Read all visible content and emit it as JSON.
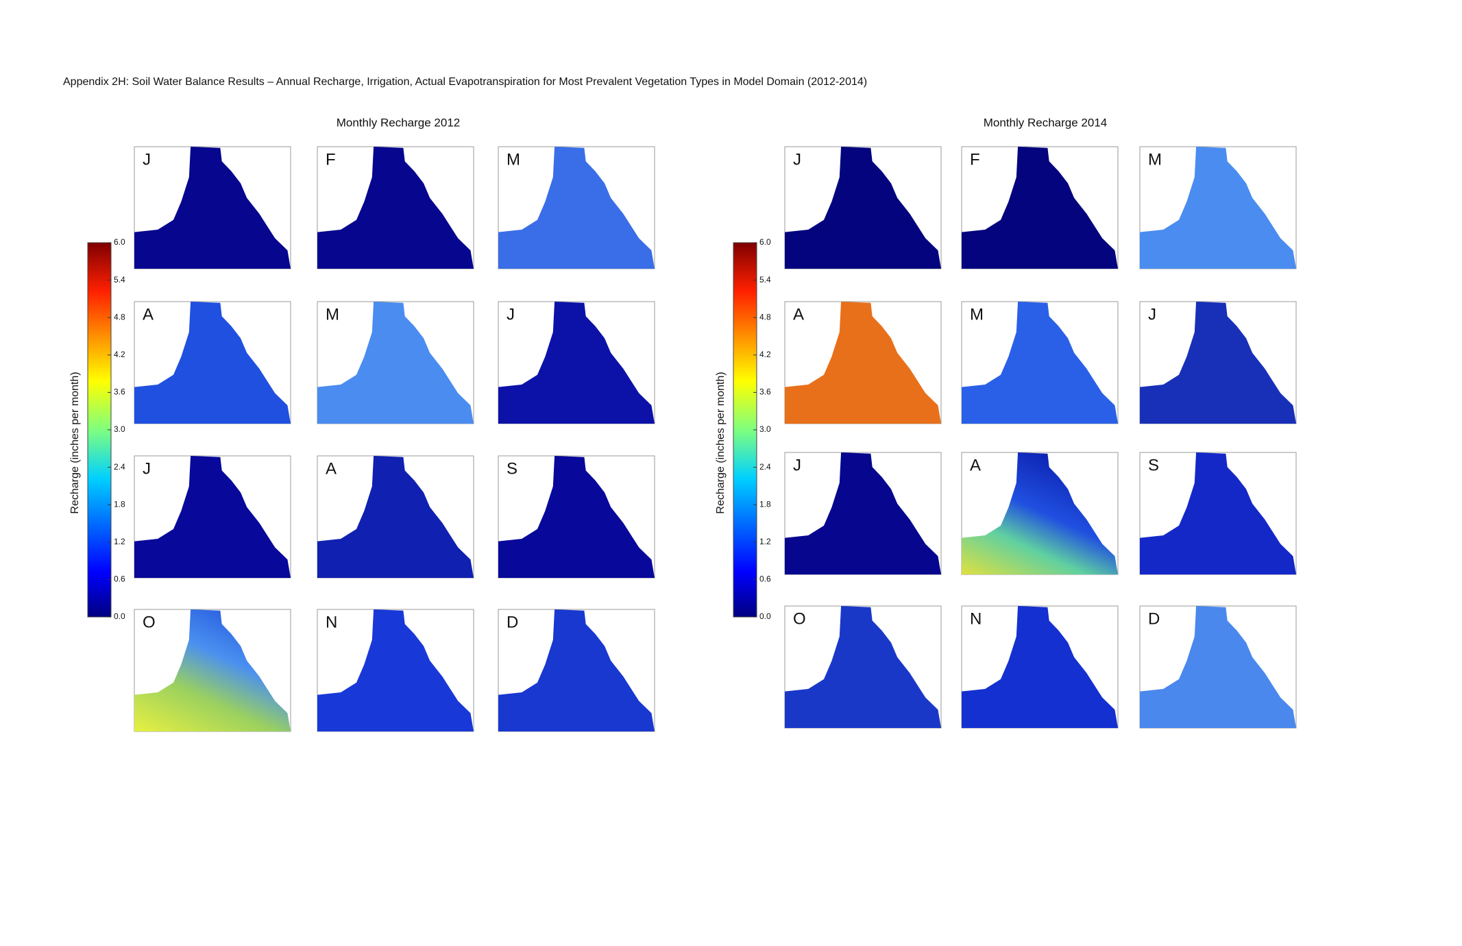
{
  "title": "Appendix 2H: Soil Water Balance Results – Annual Recharge, Irrigation, Actual Evapotranspiration for Most Prevalent Vegetation Types in Model Domain (2012-2014)",
  "groups": [
    {
      "heading": "Monthly  Recharge 2012",
      "colorbar": {
        "label": "Recharge (inches per month)",
        "range": [
          0,
          6
        ],
        "ticks": [
          {
            "value": 0,
            "label": "0.0"
          },
          {
            "value": 0.6,
            "label": "0.6"
          },
          {
            "value": 1.2,
            "label": "1.2"
          },
          {
            "value": 1.8,
            "label": "1.8"
          },
          {
            "value": 2.4,
            "label": "2.4"
          },
          {
            "value": 3,
            "label": "3.0"
          },
          {
            "value": 3.6,
            "label": "3.6"
          },
          {
            "value": 4.2,
            "label": "4.2"
          },
          {
            "value": 4.8,
            "label": "4.8"
          },
          {
            "value": 5.4,
            "label": "5.4"
          },
          {
            "value": 6,
            "label": "6.0"
          }
        ]
      },
      "panels": [
        "J",
        "F",
        "M",
        "A",
        "M",
        "J",
        "J",
        "A",
        "S",
        "O",
        "N",
        "D"
      ]
    },
    {
      "heading": "Monthly  Recharge 2014",
      "colorbar": {
        "label": "Recharge (inches per month)",
        "range": [
          0,
          6
        ],
        "ticks": [
          {
            "value": 0,
            "label": "0.0"
          },
          {
            "value": 0.6,
            "label": "0.6"
          },
          {
            "value": 1.2,
            "label": "1.2"
          },
          {
            "value": 1.8,
            "label": "1.8"
          },
          {
            "value": 2.4,
            "label": "2.4"
          },
          {
            "value": 3,
            "label": "3.0"
          },
          {
            "value": 3.6,
            "label": "3.6"
          },
          {
            "value": 4.2,
            "label": "4.2"
          },
          {
            "value": 4.8,
            "label": "4.8"
          },
          {
            "value": 5.4,
            "label": "5.4"
          },
          {
            "value": 6,
            "label": "6.0"
          }
        ]
      },
      "panels": [
        "J",
        "F",
        "M",
        "A",
        "M",
        "J",
        "J",
        "A",
        "S",
        "O",
        "N",
        "D"
      ]
    }
  ]
}
